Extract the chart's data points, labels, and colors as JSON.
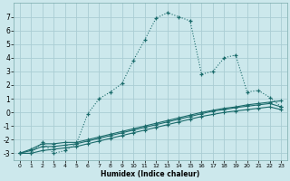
{
  "xlabel": "Humidex (Indice chaleur)",
  "background_color": "#cce8ec",
  "grid_color": "#aacdd4",
  "line_color": "#1a6b6b",
  "xlim": [
    -0.5,
    23.5
  ],
  "ylim": [
    -3.5,
    8.0
  ],
  "yticks": [
    -3,
    -2,
    -1,
    0,
    1,
    2,
    3,
    4,
    5,
    6,
    7
  ],
  "xticks": [
    0,
    1,
    2,
    3,
    4,
    5,
    6,
    7,
    8,
    9,
    10,
    11,
    12,
    13,
    14,
    15,
    16,
    17,
    18,
    19,
    20,
    21,
    22,
    23
  ],
  "series_main_x": [
    0,
    1,
    2,
    3,
    4,
    5,
    6,
    7,
    8,
    9,
    10,
    11,
    12,
    13,
    14,
    15,
    16,
    17,
    18,
    19,
    20,
    21,
    22,
    23
  ],
  "series_main_y": [
    -3.0,
    -3.0,
    -2.2,
    -3.0,
    -2.8,
    -2.3,
    -0.1,
    1.0,
    1.5,
    2.1,
    3.8,
    5.3,
    6.9,
    7.3,
    7.0,
    6.7,
    2.8,
    3.0,
    4.0,
    4.2,
    1.5,
    1.6,
    1.1,
    0.4
  ],
  "series_a_x": [
    0,
    1,
    2,
    3,
    4,
    5,
    6,
    7,
    8,
    9,
    10,
    11,
    12,
    13,
    14,
    15,
    16,
    17,
    18,
    19,
    20,
    21,
    22,
    23
  ],
  "series_a_y": [
    -3.0,
    -2.7,
    -2.3,
    -2.3,
    -2.2,
    -2.2,
    -2.0,
    -1.8,
    -1.6,
    -1.4,
    -1.2,
    -1.0,
    -0.8,
    -0.6,
    -0.4,
    -0.2,
    0.0,
    0.15,
    0.3,
    0.4,
    0.55,
    0.65,
    0.75,
    0.85
  ],
  "series_b_x": [
    0,
    1,
    2,
    3,
    4,
    5,
    6,
    7,
    8,
    9,
    10,
    11,
    12,
    13,
    14,
    15,
    16,
    17,
    18,
    19,
    20,
    21,
    22,
    23
  ],
  "series_b_y": [
    -3.0,
    -2.8,
    -2.5,
    -2.5,
    -2.4,
    -2.3,
    -2.1,
    -1.9,
    -1.7,
    -1.5,
    -1.3,
    -1.1,
    -0.9,
    -0.7,
    -0.5,
    -0.3,
    -0.1,
    0.1,
    0.2,
    0.35,
    0.45,
    0.55,
    0.65,
    0.4
  ],
  "series_c_x": [
    0,
    1,
    2,
    3,
    4,
    5,
    6,
    7,
    8,
    9,
    10,
    11,
    12,
    13,
    14,
    15,
    16,
    17,
    18,
    19,
    20,
    21,
    22,
    23
  ],
  "series_c_y": [
    -3.0,
    -3.0,
    -2.8,
    -2.7,
    -2.6,
    -2.5,
    -2.3,
    -2.1,
    -1.9,
    -1.7,
    -1.5,
    -1.3,
    -1.1,
    -0.9,
    -0.7,
    -0.5,
    -0.3,
    -0.15,
    0.0,
    0.1,
    0.2,
    0.3,
    0.4,
    0.2
  ],
  "marker": "+"
}
